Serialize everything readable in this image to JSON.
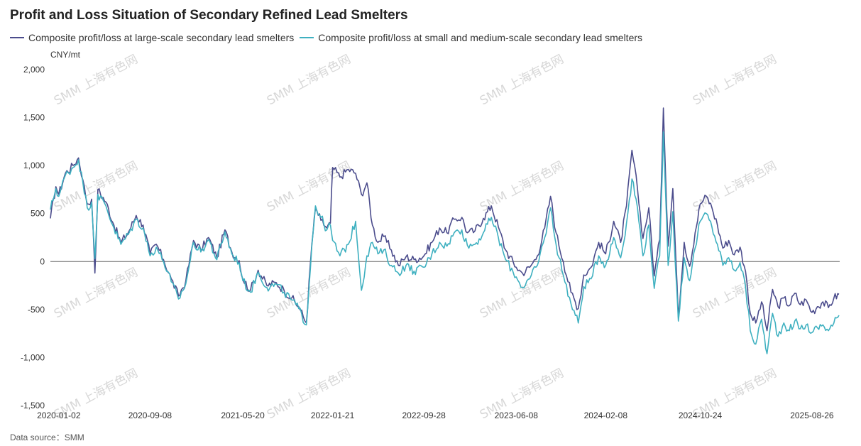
{
  "chart_data": {
    "type": "line",
    "title": "Profit and Loss Situation of Secondary Refined Lead Smelters",
    "unit_label": "CNY/mt",
    "source_label": "Data source：SMM",
    "watermark": "SMM 上海有色网",
    "ylim": [
      -1500,
      2000
    ],
    "yticks": [
      2000,
      1500,
      1000,
      500,
      0,
      -500,
      -1000,
      -1500
    ],
    "ytick_labels": [
      "2,000",
      "1,500",
      "1,000",
      "500",
      "0",
      "-500",
      "-1,000",
      "-1,500"
    ],
    "xlim": [
      "2019-12-10",
      "2025-11-10"
    ],
    "xtick_labels": [
      "2020-01-02",
      "2020-09-08",
      "2021-05-20",
      "2022-01-21",
      "2022-09-28",
      "2023-06-08",
      "2024-02-08",
      "2024-10-24",
      "2025-08-26"
    ],
    "legend_position": "top-left",
    "grid": false,
    "colors": {
      "large": "#4b4c8c",
      "small": "#3eb0c0"
    },
    "series": [
      {
        "name": "Composite profit/loss at large-scale secondary lead smelters",
        "color": "#4b4c8c",
        "points": [
          [
            "2019-12-10",
            450
          ],
          [
            "2019-12-25",
            780
          ],
          [
            "2020-01-02",
            700
          ],
          [
            "2020-01-20",
            920
          ],
          [
            "2020-02-10",
            1000
          ],
          [
            "2020-02-25",
            1080
          ],
          [
            "2020-03-08",
            850
          ],
          [
            "2020-03-20",
            600
          ],
          [
            "2020-04-01",
            650
          ],
          [
            "2020-04-10",
            -120
          ],
          [
            "2020-04-18",
            750
          ],
          [
            "2020-05-10",
            620
          ],
          [
            "2020-06-01",
            380
          ],
          [
            "2020-06-20",
            200
          ],
          [
            "2020-07-10",
            300
          ],
          [
            "2020-08-01",
            480
          ],
          [
            "2020-08-20",
            380
          ],
          [
            "2020-09-08",
            80
          ],
          [
            "2020-09-25",
            180
          ],
          [
            "2020-10-15",
            20
          ],
          [
            "2020-11-05",
            -180
          ],
          [
            "2020-11-25",
            -360
          ],
          [
            "2020-12-15",
            -200
          ],
          [
            "2021-01-05",
            220
          ],
          [
            "2021-01-25",
            120
          ],
          [
            "2021-02-15",
            250
          ],
          [
            "2021-03-10",
            40
          ],
          [
            "2021-04-01",
            330
          ],
          [
            "2021-04-20",
            100
          ],
          [
            "2021-05-10",
            10
          ],
          [
            "2021-05-20",
            -180
          ],
          [
            "2021-06-10",
            -300
          ],
          [
            "2021-07-01",
            -90
          ],
          [
            "2021-07-25",
            -250
          ],
          [
            "2021-08-20",
            -220
          ],
          [
            "2021-09-10",
            -300
          ],
          [
            "2021-10-01",
            -380
          ],
          [
            "2021-10-20",
            -470
          ],
          [
            "2021-11-10",
            -640
          ],
          [
            "2021-11-25",
            180
          ],
          [
            "2021-12-05",
            550
          ],
          [
            "2021-12-20",
            430
          ],
          [
            "2022-01-05",
            350
          ],
          [
            "2022-01-15",
            400
          ],
          [
            "2022-01-21",
            980
          ],
          [
            "2022-02-10",
            880
          ],
          [
            "2022-03-05",
            960
          ],
          [
            "2022-03-25",
            920
          ],
          [
            "2022-04-10",
            700
          ],
          [
            "2022-04-25",
            820
          ],
          [
            "2022-05-10",
            380
          ],
          [
            "2022-05-25",
            200
          ],
          [
            "2022-06-10",
            260
          ],
          [
            "2022-07-01",
            120
          ],
          [
            "2022-07-20",
            -40
          ],
          [
            "2022-08-10",
            50
          ],
          [
            "2022-09-01",
            20
          ],
          [
            "2022-09-28",
            60
          ],
          [
            "2022-10-20",
            200
          ],
          [
            "2022-11-10",
            350
          ],
          [
            "2022-11-30",
            300
          ],
          [
            "2022-12-20",
            440
          ],
          [
            "2023-01-10",
            460
          ],
          [
            "2023-01-25",
            300
          ],
          [
            "2023-02-15",
            320
          ],
          [
            "2023-03-10",
            450
          ],
          [
            "2023-04-01",
            580
          ],
          [
            "2023-04-20",
            360
          ],
          [
            "2023-05-10",
            120
          ],
          [
            "2023-06-08",
            -60
          ],
          [
            "2023-06-25",
            -120
          ],
          [
            "2023-07-15",
            -60
          ],
          [
            "2023-08-05",
            60
          ],
          [
            "2023-08-25",
            350
          ],
          [
            "2023-09-10",
            680
          ],
          [
            "2023-09-25",
            300
          ],
          [
            "2023-10-15",
            0
          ],
          [
            "2023-11-05",
            -320
          ],
          [
            "2023-11-25",
            -490
          ],
          [
            "2023-12-10",
            -140
          ],
          [
            "2023-12-30",
            -60
          ],
          [
            "2024-01-20",
            200
          ],
          [
            "2024-02-08",
            80
          ],
          [
            "2024-03-01",
            420
          ],
          [
            "2024-03-20",
            200
          ],
          [
            "2024-04-05",
            580
          ],
          [
            "2024-04-20",
            1160
          ],
          [
            "2024-05-05",
            760
          ],
          [
            "2024-05-20",
            240
          ],
          [
            "2024-06-05",
            560
          ],
          [
            "2024-06-20",
            -150
          ],
          [
            "2024-07-05",
            230
          ],
          [
            "2024-07-15",
            1600
          ],
          [
            "2024-07-28",
            160
          ],
          [
            "2024-08-10",
            760
          ],
          [
            "2024-08-25",
            -580
          ],
          [
            "2024-09-10",
            200
          ],
          [
            "2024-09-25",
            -50
          ],
          [
            "2024-10-10",
            300
          ],
          [
            "2024-10-24",
            600
          ],
          [
            "2024-11-10",
            680
          ],
          [
            "2024-11-25",
            560
          ],
          [
            "2024-12-10",
            380
          ],
          [
            "2024-12-25",
            140
          ],
          [
            "2025-01-10",
            220
          ],
          [
            "2025-01-25",
            70
          ],
          [
            "2025-02-10",
            150
          ],
          [
            "2025-02-25",
            -100
          ],
          [
            "2025-03-10",
            -540
          ],
          [
            "2025-03-25",
            -640
          ],
          [
            "2025-04-10",
            -420
          ],
          [
            "2025-04-25",
            -720
          ],
          [
            "2025-05-10",
            -290
          ],
          [
            "2025-05-25",
            -470
          ],
          [
            "2025-06-10",
            -380
          ],
          [
            "2025-06-25",
            -460
          ],
          [
            "2025-07-10",
            -330
          ],
          [
            "2025-07-25",
            -450
          ],
          [
            "2025-08-10",
            -400
          ],
          [
            "2025-08-26",
            -530
          ],
          [
            "2025-09-10",
            -470
          ],
          [
            "2025-09-25",
            -420
          ],
          [
            "2025-10-10",
            -480
          ],
          [
            "2025-10-25",
            -380
          ],
          [
            "2025-11-08",
            -340
          ]
        ]
      },
      {
        "name": "Composite profit/loss at small and medium-scale secondary lead smelters",
        "color": "#3eb0c0",
        "points": [
          [
            "2019-12-10",
            540
          ],
          [
            "2019-12-25",
            760
          ],
          [
            "2020-01-02",
            680
          ],
          [
            "2020-01-20",
            900
          ],
          [
            "2020-02-10",
            980
          ],
          [
            "2020-02-25",
            1060
          ],
          [
            "2020-03-08",
            820
          ],
          [
            "2020-03-20",
            560
          ],
          [
            "2020-04-01",
            620
          ],
          [
            "2020-04-10",
            30
          ],
          [
            "2020-04-18",
            700
          ],
          [
            "2020-05-10",
            580
          ],
          [
            "2020-06-01",
            350
          ],
          [
            "2020-06-20",
            180
          ],
          [
            "2020-07-10",
            280
          ],
          [
            "2020-08-01",
            440
          ],
          [
            "2020-08-20",
            350
          ],
          [
            "2020-09-08",
            60
          ],
          [
            "2020-09-25",
            150
          ],
          [
            "2020-10-15",
            0
          ],
          [
            "2020-11-05",
            -210
          ],
          [
            "2020-11-25",
            -390
          ],
          [
            "2020-12-15",
            -230
          ],
          [
            "2021-01-05",
            200
          ],
          [
            "2021-01-25",
            100
          ],
          [
            "2021-02-15",
            230
          ],
          [
            "2021-03-10",
            20
          ],
          [
            "2021-04-01",
            310
          ],
          [
            "2021-04-20",
            80
          ],
          [
            "2021-05-10",
            -10
          ],
          [
            "2021-05-20",
            -200
          ],
          [
            "2021-06-10",
            -320
          ],
          [
            "2021-07-01",
            -110
          ],
          [
            "2021-07-25",
            -270
          ],
          [
            "2021-08-20",
            -240
          ],
          [
            "2021-09-10",
            -320
          ],
          [
            "2021-10-01",
            -400
          ],
          [
            "2021-10-20",
            -490
          ],
          [
            "2021-11-10",
            -660
          ],
          [
            "2021-11-25",
            160
          ],
          [
            "2021-12-05",
            580
          ],
          [
            "2021-12-20",
            460
          ],
          [
            "2022-01-05",
            330
          ],
          [
            "2022-01-15",
            380
          ],
          [
            "2022-01-21",
            220
          ],
          [
            "2022-02-10",
            60
          ],
          [
            "2022-03-05",
            180
          ],
          [
            "2022-03-25",
            420
          ],
          [
            "2022-04-10",
            -300
          ],
          [
            "2022-04-25",
            60
          ],
          [
            "2022-05-10",
            200
          ],
          [
            "2022-05-25",
            80
          ],
          [
            "2022-06-10",
            120
          ],
          [
            "2022-07-01",
            -40
          ],
          [
            "2022-07-20",
            -120
          ],
          [
            "2022-08-10",
            -40
          ],
          [
            "2022-09-01",
            -100
          ],
          [
            "2022-09-28",
            -60
          ],
          [
            "2022-10-20",
            80
          ],
          [
            "2022-11-10",
            200
          ],
          [
            "2022-11-30",
            160
          ],
          [
            "2022-12-20",
            300
          ],
          [
            "2023-01-10",
            330
          ],
          [
            "2023-01-25",
            170
          ],
          [
            "2023-02-15",
            180
          ],
          [
            "2023-03-10",
            300
          ],
          [
            "2023-04-01",
            460
          ],
          [
            "2023-04-20",
            250
          ],
          [
            "2023-05-10",
            20
          ],
          [
            "2023-06-08",
            -160
          ],
          [
            "2023-06-25",
            -270
          ],
          [
            "2023-07-15",
            -180
          ],
          [
            "2023-08-05",
            -40
          ],
          [
            "2023-08-25",
            250
          ],
          [
            "2023-09-10",
            560
          ],
          [
            "2023-09-25",
            180
          ],
          [
            "2023-10-15",
            -140
          ],
          [
            "2023-11-05",
            -440
          ],
          [
            "2023-11-25",
            -640
          ],
          [
            "2023-12-10",
            -260
          ],
          [
            "2023-12-30",
            -180
          ],
          [
            "2024-01-20",
            60
          ],
          [
            "2024-02-08",
            -40
          ],
          [
            "2024-03-01",
            250
          ],
          [
            "2024-03-20",
            40
          ],
          [
            "2024-04-05",
            400
          ],
          [
            "2024-04-20",
            860
          ],
          [
            "2024-05-05",
            560
          ],
          [
            "2024-05-20",
            60
          ],
          [
            "2024-06-05",
            380
          ],
          [
            "2024-06-20",
            -280
          ],
          [
            "2024-07-05",
            60
          ],
          [
            "2024-07-15",
            1350
          ],
          [
            "2024-07-28",
            -40
          ],
          [
            "2024-08-10",
            520
          ],
          [
            "2024-08-25",
            -620
          ],
          [
            "2024-09-10",
            40
          ],
          [
            "2024-09-25",
            -200
          ],
          [
            "2024-10-10",
            140
          ],
          [
            "2024-10-24",
            420
          ],
          [
            "2024-11-10",
            500
          ],
          [
            "2024-11-25",
            360
          ],
          [
            "2024-12-10",
            180
          ],
          [
            "2024-12-25",
            -40
          ],
          [
            "2025-01-10",
            40
          ],
          [
            "2025-01-25",
            -90
          ],
          [
            "2025-02-10",
            -10
          ],
          [
            "2025-02-25",
            -260
          ],
          [
            "2025-03-10",
            -720
          ],
          [
            "2025-03-25",
            -860
          ],
          [
            "2025-04-10",
            -600
          ],
          [
            "2025-04-25",
            -960
          ],
          [
            "2025-05-10",
            -540
          ],
          [
            "2025-05-25",
            -780
          ],
          [
            "2025-06-10",
            -640
          ],
          [
            "2025-06-25",
            -720
          ],
          [
            "2025-07-10",
            -620
          ],
          [
            "2025-07-25",
            -700
          ],
          [
            "2025-08-10",
            -660
          ],
          [
            "2025-08-26",
            -740
          ],
          [
            "2025-09-10",
            -690
          ],
          [
            "2025-09-25",
            -660
          ],
          [
            "2025-10-10",
            -720
          ],
          [
            "2025-10-25",
            -640
          ],
          [
            "2025-11-08",
            -560
          ]
        ]
      }
    ]
  }
}
